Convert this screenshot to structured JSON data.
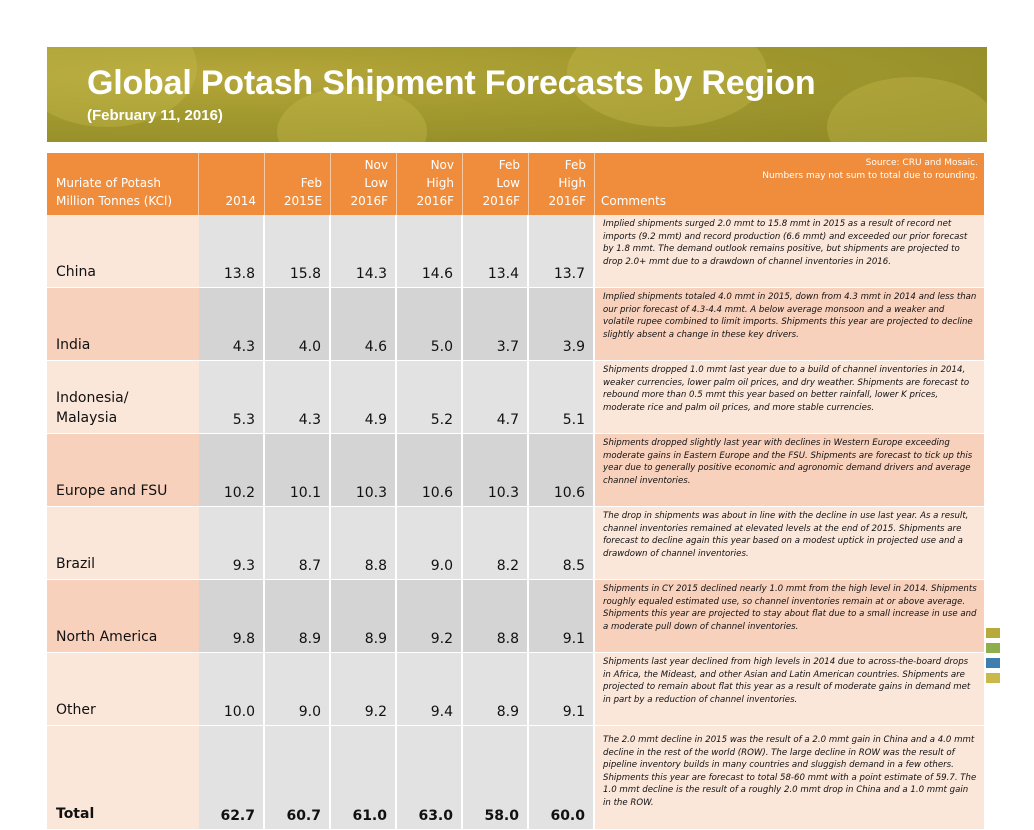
{
  "title": "Global Potash Shipment Forecasts by Region",
  "subtitle": "(February 11, 2016)",
  "source_note": [
    "Source:  CRU and Mosaic.",
    "Numbers may not sum to total due to rounding."
  ],
  "headers": {
    "region": [
      "Muriate of Potash",
      "Million Tonnes (KCl)"
    ],
    "columns": [
      [
        "",
        "",
        "2014"
      ],
      [
        "",
        "Feb",
        "2015E"
      ],
      [
        "Nov",
        "Low",
        "2016F"
      ],
      [
        "Nov",
        "High",
        "2016F"
      ],
      [
        "Feb",
        "Low",
        "2016F"
      ],
      [
        "Feb",
        "High",
        "2016F"
      ]
    ],
    "comments": "Comments"
  },
  "rows": [
    {
      "region": "China",
      "values": [
        "13.8",
        "15.8",
        "14.3",
        "14.6",
        "13.4",
        "13.7"
      ],
      "comment": "Implied shipments surged 2.0 mmt to 15.8 mmt in 2015 as a result of record net imports (9.2 mmt) and record production (6.6 mmt) and exceeded our prior forecast by 1.8 mmt.  The demand outlook remains positive, but shipments are projected to drop 2.0+ mmt due to a drawdown of channel inventories in 2016."
    },
    {
      "region": "India",
      "values": [
        "4.3",
        "4.0",
        "4.6",
        "5.0",
        "3.7",
        "3.9"
      ],
      "comment": "Implied shipments totaled 4.0 mmt in 2015, down from 4.3 mmt in 2014 and less than our prior forecast of 4.3-4.4 mmt.  A below average monsoon and a weaker and volatile rupee combined to limit imports.  Shipments this year are projected to decline slightly absent a change in these key drivers."
    },
    {
      "region": "Indonesia/\nMalaysia",
      "values": [
        "5.3",
        "4.3",
        "4.9",
        "5.2",
        "4.7",
        "5.1"
      ],
      "comment": "Shipments dropped 1.0 mmt last year due to a build of channel inventories in 2014, weaker currencies, lower palm oil prices, and dry weather. Shipments are forecast to rebound more than 0.5 mmt this year based on better rainfall, lower K prices, moderate rice and palm oil prices, and more stable currencies."
    },
    {
      "region": "Europe and FSU",
      "values": [
        "10.2",
        "10.1",
        "10.3",
        "10.6",
        "10.3",
        "10.6"
      ],
      "comment": "Shipments dropped slightly last year with declines in Western Europe exceeding moderate gains in Eastern Europe and the FSU.  Shipments are forecast to tick up this year due to generally positive economic and agronomic demand drivers and average channel inventories."
    },
    {
      "region": "Brazil",
      "values": [
        "9.3",
        "8.7",
        "8.8",
        "9.0",
        "8.2",
        "8.5"
      ],
      "comment": "The drop in shipments was about in line with the decline in use last year.  As a result, channel inventories remained at elevated levels at the end of 2015.   Shipments are forecast to decline again this year based on a modest uptick in projected use and a drawdown of channel inventories."
    },
    {
      "region": "North America",
      "values": [
        "9.8",
        "8.9",
        "8.9",
        "9.2",
        "8.8",
        "9.1"
      ],
      "comment": "Shipments in CY 2015 declined nearly 1.0 mmt from the high level in 2014.  Shipments roughly equaled estimated use, so channel inventories remain at or above average. Shipments this year are projected to stay about flat due to a small increase in use and a moderate pull down of channel inventories."
    },
    {
      "region": "Other",
      "values": [
        "10.0",
        "9.0",
        "9.2",
        "9.4",
        "8.9",
        "9.1"
      ],
      "comment": "Shipments last year declined from high levels in 2014 due to across-the-board drops in Africa, the Mideast, and other Asian and Latin American countries.  Shipments are projected to remain about flat this year as a result of moderate gains in demand met in part by a reduction of channel inventories."
    }
  ],
  "total": {
    "region": "Total",
    "values": [
      "62.7",
      "60.7",
      "61.0",
      "63.0",
      "58.0",
      "60.0"
    ],
    "comment": "The 2.0 mmt decline in 2015 was the result of a 2.0 mmt gain in China and a 4.0 mmt decline in the rest of the world (ROW).  The large decline in ROW was the result of pipeline inventory builds in many countries and sluggish demand in a few others. Shipments this year are forecast to total 58-60 mmt with a point estimate of 59.7.  The 1.0 mmt decline is the result of  a roughly 2.0 mmt drop in China and a 1.0 mmt gain in the ROW."
  },
  "colors": {
    "banner": "#a39a2f",
    "header": "#f08d3c",
    "row_light": "#fbe6da",
    "row_dark": "#f8d1bd",
    "num_light": "#e2e2e2",
    "num_dark": "#d4d4d4"
  }
}
